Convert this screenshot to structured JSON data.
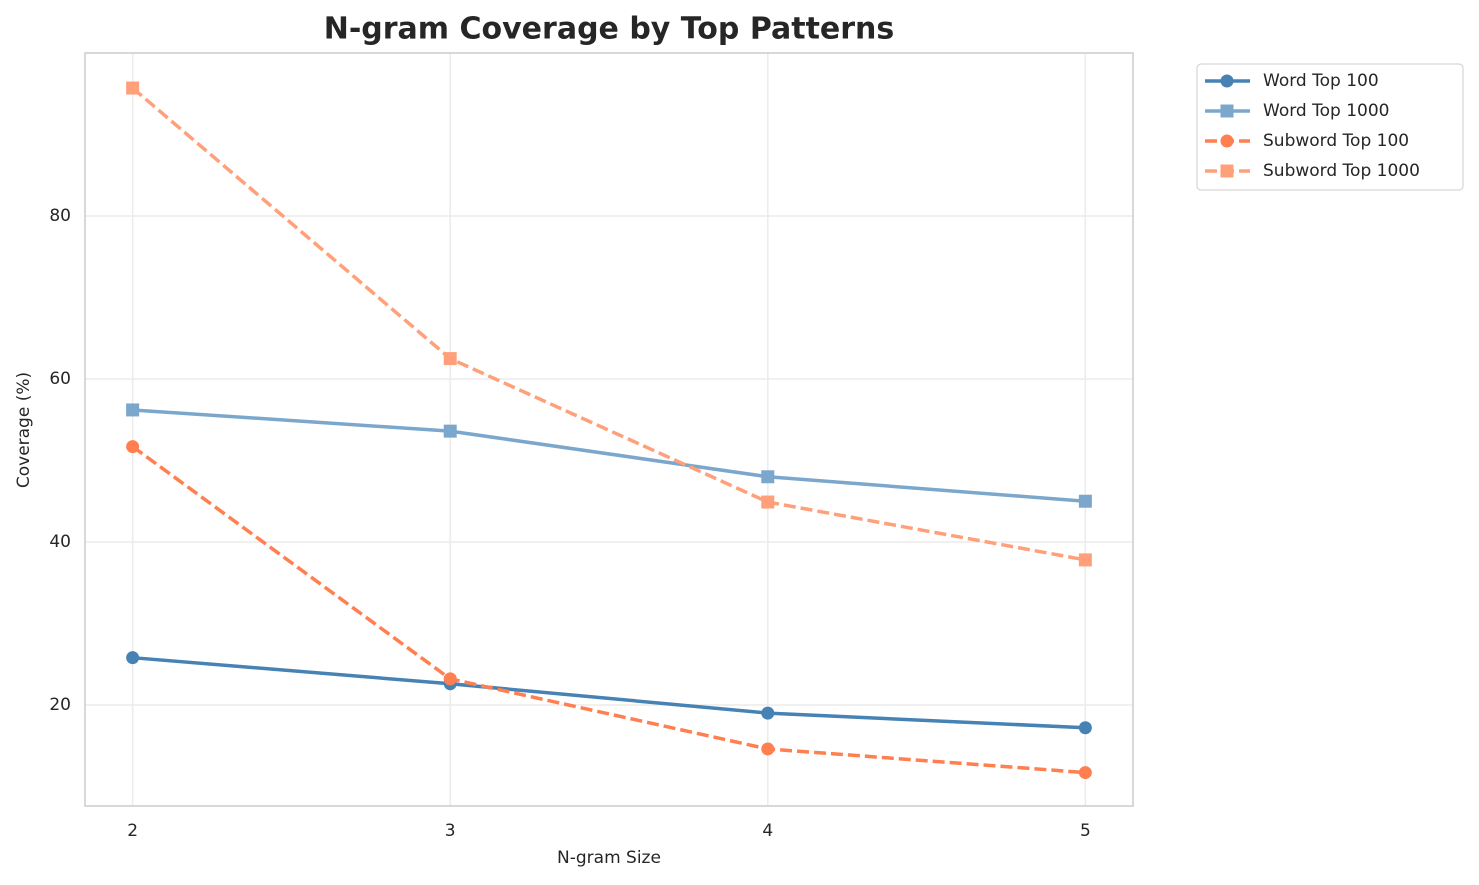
{
  "chart_data": {
    "type": "line",
    "title": "N-gram Coverage by Top Patterns",
    "xlabel": "N-gram Size",
    "ylabel": "Coverage (%)",
    "x": [
      2,
      3,
      4,
      5
    ],
    "xlim": [
      1.85,
      5.15
    ],
    "xticks": [
      2,
      3,
      4,
      5
    ],
    "ylim": [
      7.6,
      100
    ],
    "yticks": [
      20,
      40,
      60,
      80
    ],
    "grid": true,
    "legend": "outside upper right",
    "series": [
      {
        "name": "Word Top 100",
        "color": "#4682b4",
        "linestyle": "solid",
        "marker": "circle",
        "values": [
          25.8,
          22.6,
          19.0,
          17.2
        ]
      },
      {
        "name": "Word Top 1000",
        "color": "#7ba7cc",
        "linestyle": "solid",
        "marker": "square",
        "values": [
          56.2,
          53.6,
          48.0,
          45.0
        ]
      },
      {
        "name": "Subword Top 100",
        "color": "#ff7f50",
        "linestyle": "dashed",
        "marker": "circle",
        "values": [
          51.7,
          23.2,
          14.6,
          11.7
        ]
      },
      {
        "name": "Subword Top 1000",
        "color": "#ffa07a",
        "linestyle": "dashed",
        "marker": "square",
        "values": [
          95.7,
          62.5,
          44.9,
          37.8
        ]
      }
    ]
  }
}
